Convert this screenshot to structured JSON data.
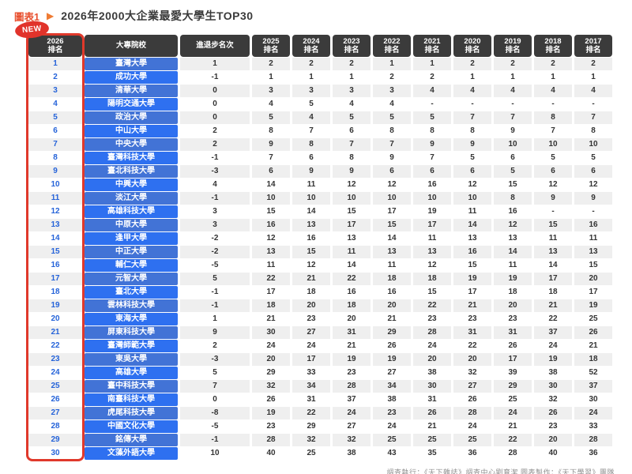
{
  "page": {
    "chart_label": "圖表1",
    "title": "2026年2000大企業最愛大學生TOP30",
    "new_badge": "NEW",
    "footer": "調查執行：《天下雜誌》調查中心劉育潔 圖表製作：《天下學習》團隊"
  },
  "colors": {
    "accent_red": "#e0392b",
    "header_bg": "#3b3b3b",
    "row_blue_dark": "#4273d6",
    "row_blue_bright": "#2e70f0",
    "rank_blue": "#2563d9",
    "title_orange": "#e8502f"
  },
  "chart_data": {
    "type": "table",
    "title": "2026年2000大企業最愛大學生TOP30",
    "columns": [
      "2026\n排名",
      "大專院校",
      "進退步名次",
      "2025\n排名",
      "2024\n排名",
      "2023\n排名",
      "2022\n排名",
      "2021\n排名",
      "2020\n排名",
      "2019\n排名",
      "2018\n排名",
      "2017\n排名"
    ],
    "rows": [
      [
        "1",
        "臺灣大學",
        "1",
        "2",
        "2",
        "2",
        "1",
        "1",
        "2",
        "2",
        "2",
        "2"
      ],
      [
        "2",
        "成功大學",
        "-1",
        "1",
        "1",
        "1",
        "2",
        "2",
        "1",
        "1",
        "1",
        "1"
      ],
      [
        "3",
        "清華大學",
        "0",
        "3",
        "3",
        "3",
        "3",
        "4",
        "4",
        "4",
        "4",
        "4"
      ],
      [
        "4",
        "陽明交通大學",
        "0",
        "4",
        "5",
        "4",
        "4",
        "-",
        "-",
        "-",
        "-",
        "-"
      ],
      [
        "5",
        "政治大學",
        "0",
        "5",
        "4",
        "5",
        "5",
        "5",
        "7",
        "7",
        "8",
        "7"
      ],
      [
        "6",
        "中山大學",
        "2",
        "8",
        "7",
        "6",
        "8",
        "8",
        "8",
        "9",
        "7",
        "8"
      ],
      [
        "7",
        "中央大學",
        "2",
        "9",
        "8",
        "7",
        "7",
        "9",
        "9",
        "10",
        "10",
        "10"
      ],
      [
        "8",
        "臺灣科技大學",
        "-1",
        "7",
        "6",
        "8",
        "9",
        "7",
        "5",
        "6",
        "5",
        "5"
      ],
      [
        "9",
        "臺北科技大學",
        "-3",
        "6",
        "9",
        "9",
        "6",
        "6",
        "6",
        "5",
        "6",
        "6"
      ],
      [
        "10",
        "中興大學",
        "4",
        "14",
        "11",
        "12",
        "12",
        "16",
        "12",
        "15",
        "12",
        "12"
      ],
      [
        "11",
        "淡江大學",
        "-1",
        "10",
        "10",
        "10",
        "10",
        "10",
        "10",
        "8",
        "9",
        "9"
      ],
      [
        "12",
        "高雄科技大學",
        "3",
        "15",
        "14",
        "15",
        "17",
        "19",
        "11",
        "16",
        "-",
        "-"
      ],
      [
        "13",
        "中原大學",
        "3",
        "16",
        "13",
        "17",
        "15",
        "17",
        "14",
        "12",
        "15",
        "16"
      ],
      [
        "14",
        "逢甲大學",
        "-2",
        "12",
        "16",
        "13",
        "14",
        "11",
        "13",
        "13",
        "11",
        "11"
      ],
      [
        "15",
        "中正大學",
        "-2",
        "13",
        "15",
        "11",
        "13",
        "13",
        "16",
        "14",
        "13",
        "13"
      ],
      [
        "16",
        "輔仁大學",
        "-5",
        "11",
        "12",
        "14",
        "11",
        "12",
        "15",
        "11",
        "14",
        "15"
      ],
      [
        "17",
        "元智大學",
        "5",
        "22",
        "21",
        "22",
        "18",
        "18",
        "19",
        "19",
        "17",
        "20"
      ],
      [
        "18",
        "臺北大學",
        "-1",
        "17",
        "18",
        "16",
        "16",
        "15",
        "17",
        "18",
        "18",
        "17"
      ],
      [
        "19",
        "雲林科技大學",
        "-1",
        "18",
        "20",
        "18",
        "20",
        "22",
        "21",
        "20",
        "21",
        "19"
      ],
      [
        "20",
        "東海大學",
        "1",
        "21",
        "23",
        "20",
        "21",
        "23",
        "23",
        "23",
        "22",
        "25"
      ],
      [
        "21",
        "屏東科技大學",
        "9",
        "30",
        "27",
        "31",
        "29",
        "28",
        "31",
        "31",
        "37",
        "26"
      ],
      [
        "22",
        "臺灣師範大學",
        "2",
        "24",
        "24",
        "21",
        "26",
        "24",
        "22",
        "26",
        "24",
        "21"
      ],
      [
        "23",
        "東吳大學",
        "-3",
        "20",
        "17",
        "19",
        "19",
        "20",
        "20",
        "17",
        "19",
        "18"
      ],
      [
        "24",
        "高雄大學",
        "5",
        "29",
        "33",
        "23",
        "27",
        "38",
        "32",
        "39",
        "38",
        "52"
      ],
      [
        "25",
        "臺中科技大學",
        "7",
        "32",
        "34",
        "28",
        "34",
        "30",
        "27",
        "29",
        "30",
        "37"
      ],
      [
        "26",
        "南臺科技大學",
        "0",
        "26",
        "31",
        "37",
        "38",
        "31",
        "26",
        "25",
        "32",
        "30"
      ],
      [
        "27",
        "虎尾科技大學",
        "-8",
        "19",
        "22",
        "24",
        "23",
        "26",
        "28",
        "24",
        "26",
        "24"
      ],
      [
        "28",
        "中國文化大學",
        "-5",
        "23",
        "29",
        "27",
        "24",
        "21",
        "24",
        "21",
        "23",
        "33"
      ],
      [
        "29",
        "銘傳大學",
        "-1",
        "28",
        "32",
        "32",
        "25",
        "25",
        "25",
        "22",
        "20",
        "28"
      ],
      [
        "30",
        "文藻外語大學",
        "10",
        "40",
        "25",
        "38",
        "43",
        "35",
        "36",
        "28",
        "40",
        "36"
      ]
    ]
  }
}
